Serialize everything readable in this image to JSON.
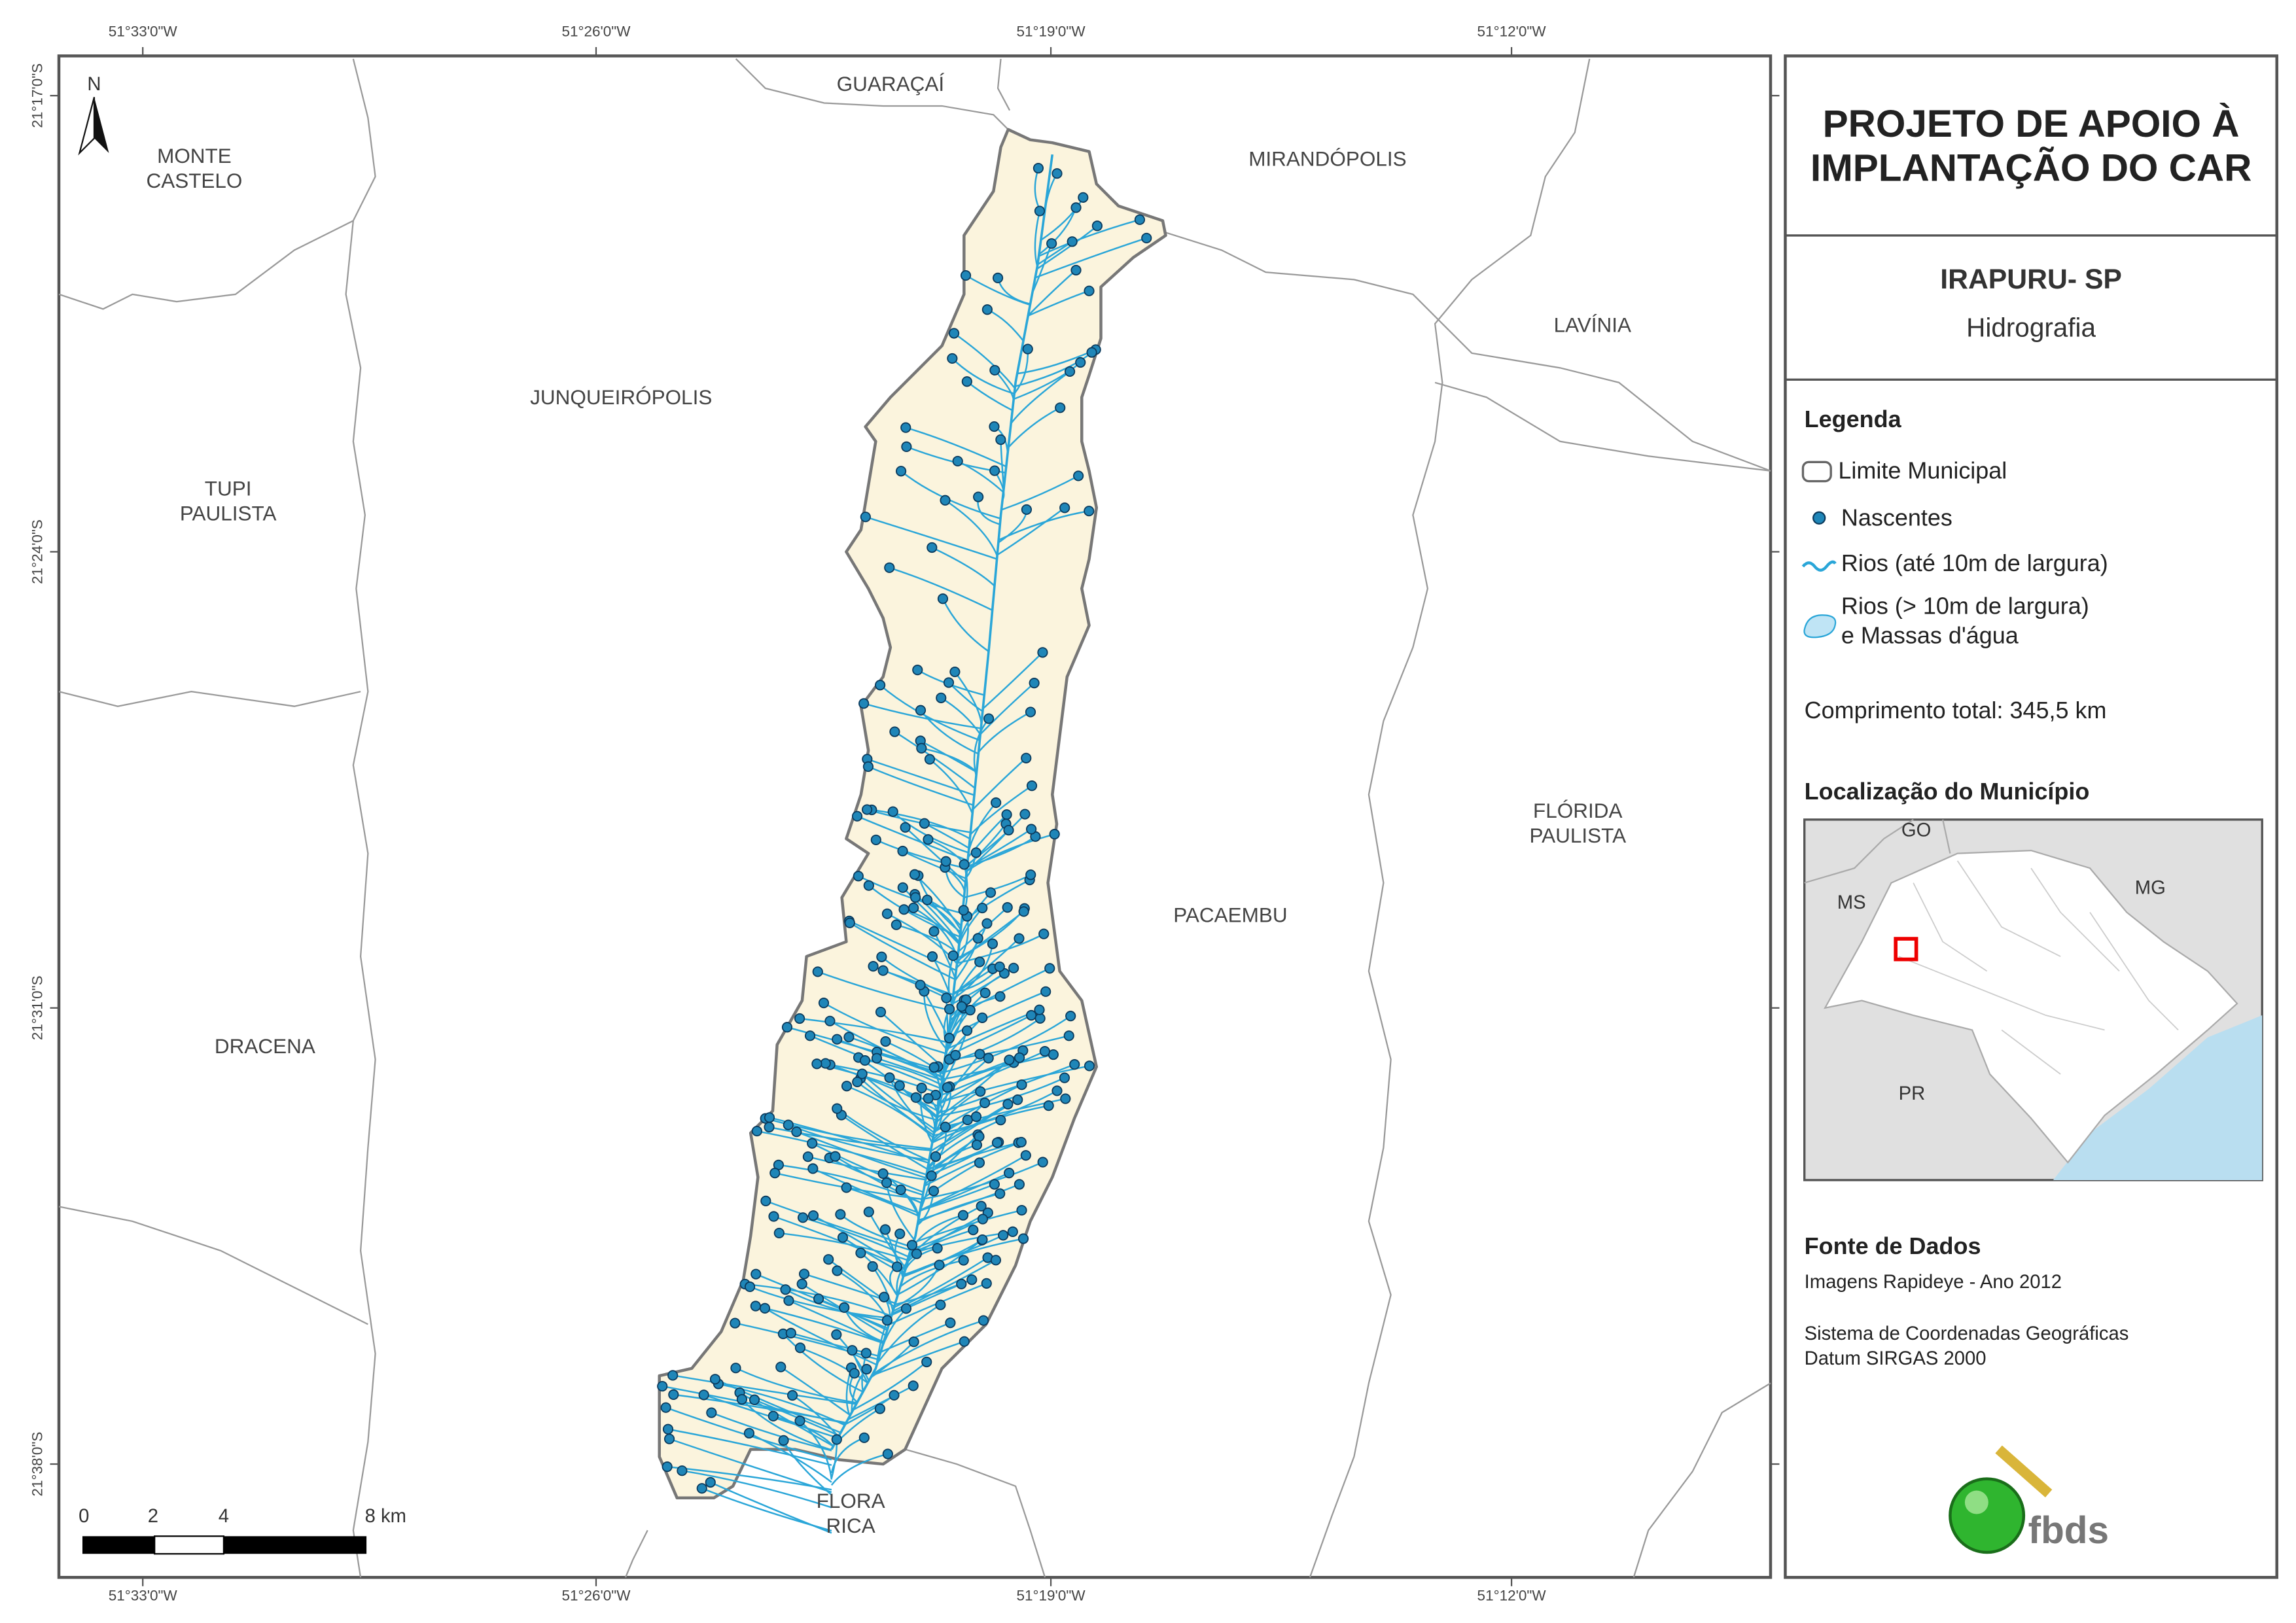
{
  "map": {
    "neighbors": [
      [
        "GUARAÇAÍ"
      ],
      [
        "MONTE",
        "CASTELO"
      ],
      [
        "MIRANDÓPOLIS"
      ],
      [
        "LAVÍNIA"
      ],
      [
        "JUNQUEIRÓPOLIS"
      ],
      [
        "TUPI",
        "PAULISTA"
      ],
      [
        "FLÓRIDA",
        "PAULISTA"
      ],
      [
        "PACAEMBU"
      ],
      [
        "DRACENA"
      ],
      [
        "FLORA",
        "RICA"
      ]
    ],
    "longitudes": [
      "51°33'0\"W",
      "51°26'0\"W",
      "51°19'0\"W",
      "51°12'0\"W"
    ],
    "latitudes": [
      "21°17'0\"S",
      "21°24'0\"S",
      "21°31'0\"S",
      "21°38'0\"S"
    ],
    "north": "N",
    "scale_labels": [
      "0",
      "2",
      "4",
      "8 km"
    ]
  },
  "panel": {
    "title": [
      "PROJETO DE APOIO À",
      "IMPLANTAÇÃO DO CAR"
    ],
    "municipality": "IRAPURU- SP",
    "theme": "Hidrografia",
    "legend": {
      "title": "Legenda",
      "items": [
        [
          "Limite Municipal"
        ],
        [
          "Nascentes"
        ],
        [
          "Rios (até 10m de largura)"
        ],
        [
          "Rios (> 10m de largura)",
          "e Massas d'água"
        ]
      ]
    },
    "total_length": "Comprimento total:  345,5 km",
    "location": {
      "title": "Localização do Município",
      "labels": [
        "GO",
        "MS",
        "MG",
        "PR"
      ]
    },
    "sources": {
      "title": "Fonte de Dados",
      "lines": [
        "Imagens Rapideye - Ano 2012",
        "Sistema de Coordenadas Geográficas",
        "Datum SIRGAS 2000"
      ]
    },
    "logo": "fbds"
  }
}
